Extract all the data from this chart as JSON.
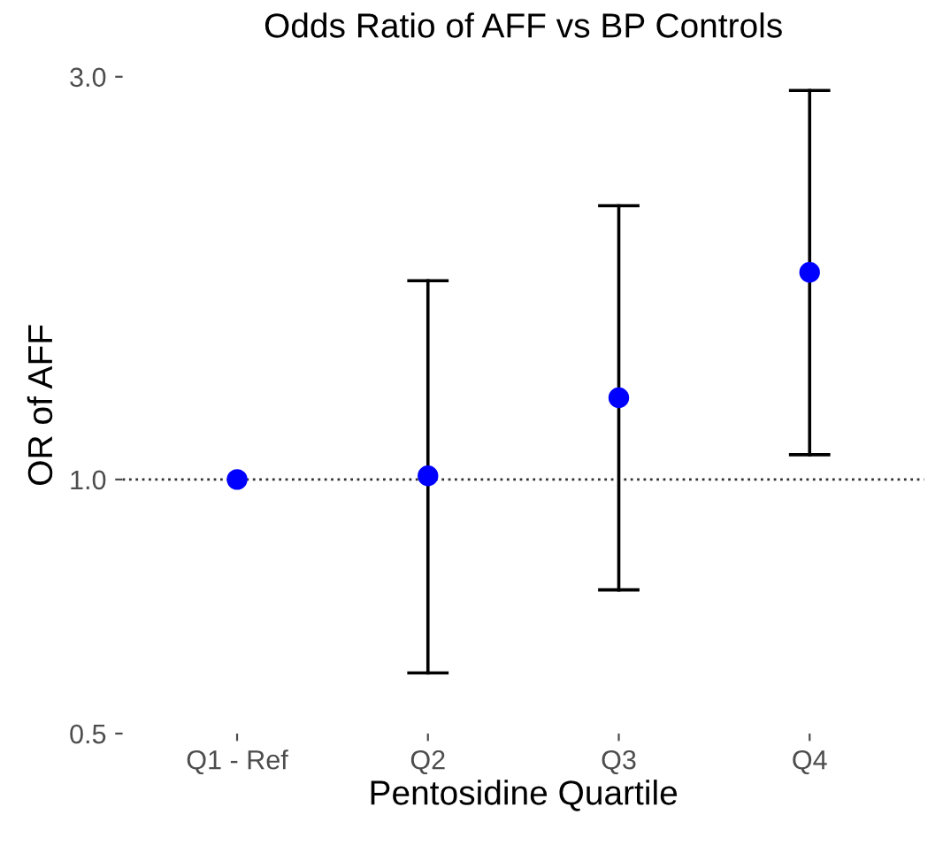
{
  "chart_data": {
    "type": "scatter",
    "title": "Odds Ratio of AFF vs BP Controls",
    "xlabel": "Pentosidine Quartile",
    "ylabel": "OR of AFF",
    "categories": [
      "Q1 - Ref",
      "Q2",
      "Q3",
      "Q4"
    ],
    "series": [
      {
        "color": "#0000ff",
        "values": [
          1.0,
          1.01,
          1.25,
          1.76
        ],
        "errors": [
          null,
          [
            0.59,
            1.72
          ],
          [
            0.74,
            2.11
          ],
          [
            1.07,
            2.89
          ]
        ]
      }
    ],
    "log": "y",
    "ylim": [
      0.5,
      3.0
    ],
    "yticks": [
      {
        "value": 0.5,
        "label": "0.5"
      },
      {
        "value": 1.0,
        "label": "1.0"
      },
      {
        "value": 3.0,
        "label": "3.0"
      }
    ],
    "ref_lines": [
      {
        "axis": "y",
        "value": 1.0,
        "label": null,
        "color": "#333333",
        "line_style": "dotted"
      }
    ],
    "grid": false,
    "legend": false,
    "marker": "circle"
  }
}
